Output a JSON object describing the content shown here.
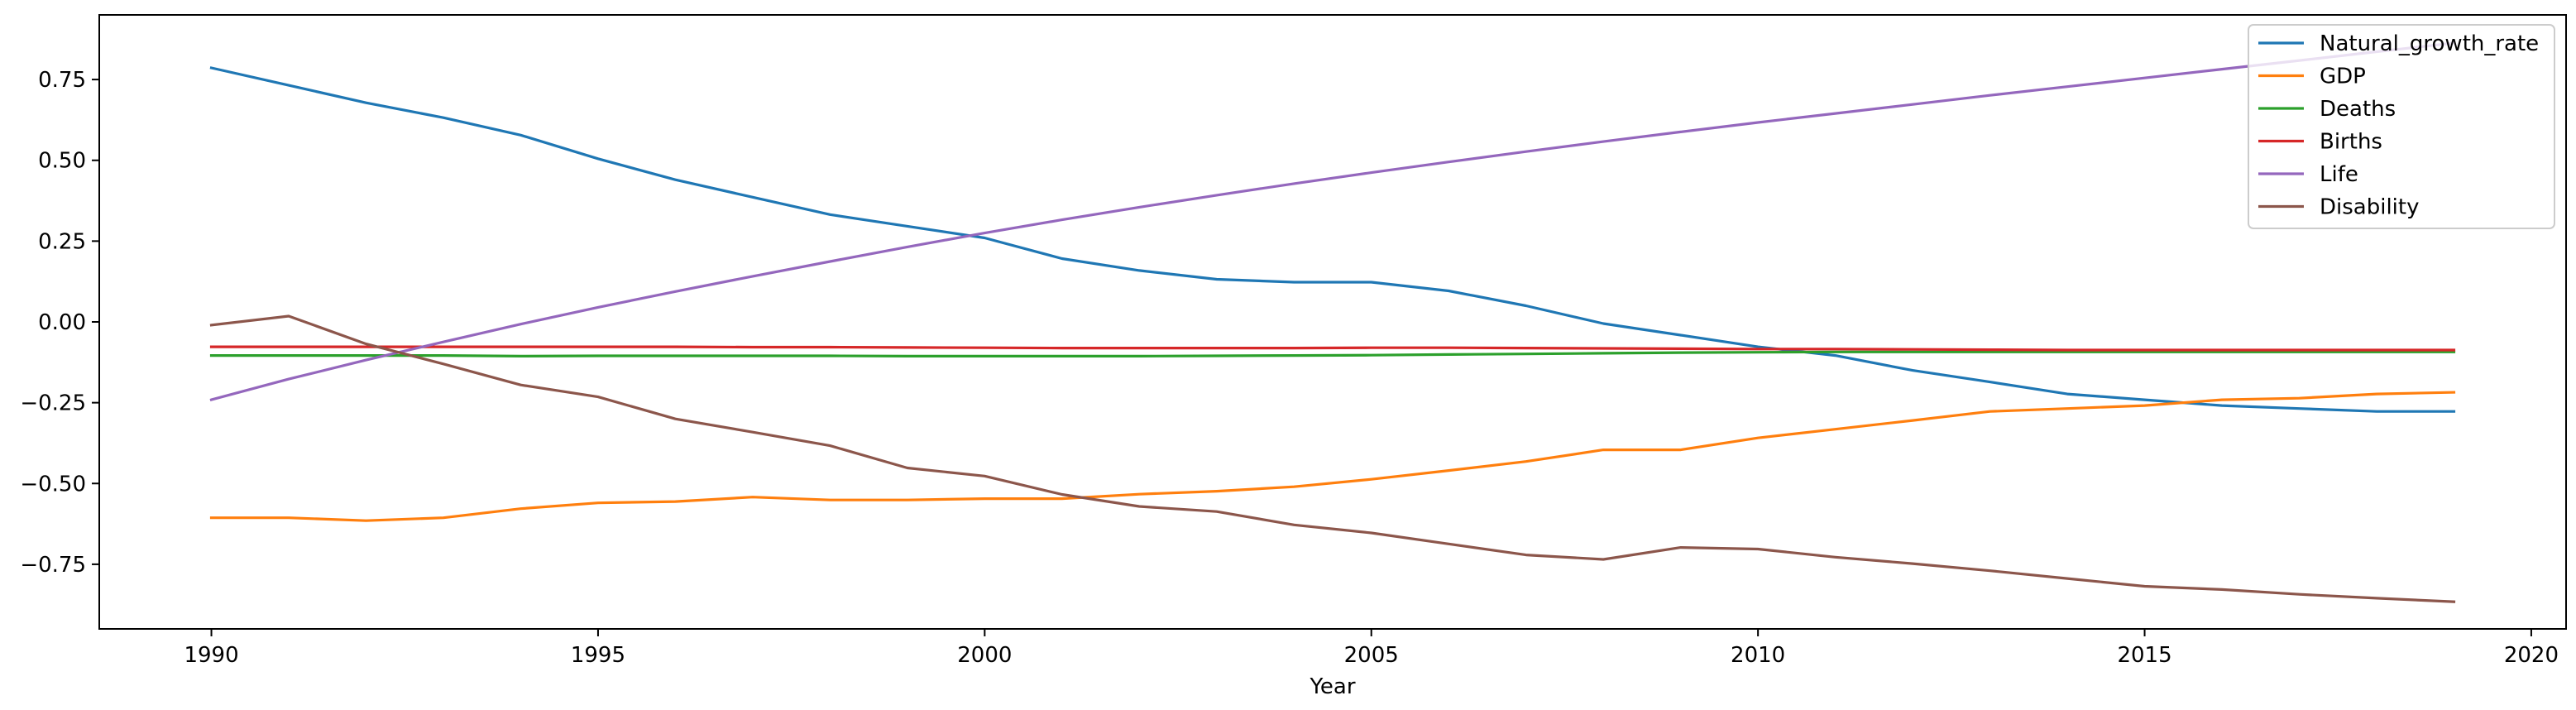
{
  "chart_data": {
    "type": "line",
    "title": "",
    "xlabel": "Year",
    "ylabel": "",
    "xlim": [
      1988.55,
      2020.45
    ],
    "ylim": [
      -0.95,
      0.95
    ],
    "xticks": [
      1990,
      1995,
      2000,
      2005,
      2010,
      2015,
      2020
    ],
    "xtick_labels": [
      "1990",
      "1995",
      "2000",
      "2005",
      "2010",
      "2015",
      "2020"
    ],
    "yticks": [
      -0.75,
      -0.5,
      -0.25,
      0.0,
      0.25,
      0.5,
      0.75
    ],
    "ytick_labels": [
      "−0.75",
      "−0.50",
      "−0.25",
      "0.00",
      "0.25",
      "0.50",
      "0.75"
    ],
    "grid": false,
    "legend_position": "top-right",
    "x": [
      1990,
      1991,
      1992,
      1993,
      1994,
      1995,
      1996,
      1997,
      1998,
      1999,
      2000,
      2001,
      2002,
      2003,
      2004,
      2005,
      2006,
      2007,
      2008,
      2009,
      2010,
      2011,
      2012,
      2013,
      2014,
      2015,
      2016,
      2017,
      2018,
      2019
    ],
    "series": [
      {
        "name": "Natural_growth_rate",
        "color": "#1f77b4",
        "values": [
          0.786,
          0.732,
          0.678,
          0.632,
          0.578,
          0.505,
          0.44,
          0.386,
          0.332,
          0.296,
          0.26,
          0.196,
          0.159,
          0.132,
          0.123,
          0.123,
          0.096,
          0.05,
          -0.005,
          -0.041,
          -0.077,
          -0.104,
          -0.15,
          -0.186,
          -0.223,
          -0.241,
          -0.259,
          -0.268,
          -0.277,
          -0.277
        ]
      },
      {
        "name": "GDP",
        "color": "#ff7f0e",
        "values": [
          -0.606,
          -0.606,
          -0.615,
          -0.606,
          -0.578,
          -0.56,
          -0.556,
          -0.542,
          -0.551,
          -0.551,
          -0.547,
          -0.547,
          -0.533,
          -0.524,
          -0.51,
          -0.487,
          -0.46,
          -0.432,
          -0.396,
          -0.396,
          -0.359,
          -0.332,
          -0.305,
          -0.277,
          -0.268,
          -0.259,
          -0.241,
          -0.236,
          -0.223,
          -0.218
        ]
      },
      {
        "name": "Deaths",
        "color": "#2ca02c",
        "values": [
          -0.104,
          -0.104,
          -0.104,
          -0.104,
          -0.106,
          -0.105,
          -0.105,
          -0.105,
          -0.105,
          -0.106,
          -0.106,
          -0.106,
          -0.106,
          -0.105,
          -0.104,
          -0.103,
          -0.101,
          -0.099,
          -0.097,
          -0.095,
          -0.094,
          -0.093,
          -0.093,
          -0.093,
          -0.093,
          -0.093,
          -0.093,
          -0.093,
          -0.093,
          -0.093
        ]
      },
      {
        "name": "Births",
        "color": "#d62728",
        "values": [
          -0.077,
          -0.077,
          -0.077,
          -0.077,
          -0.077,
          -0.077,
          -0.077,
          -0.078,
          -0.078,
          -0.079,
          -0.08,
          -0.081,
          -0.081,
          -0.081,
          -0.081,
          -0.08,
          -0.08,
          -0.081,
          -0.082,
          -0.083,
          -0.084,
          -0.084,
          -0.085,
          -0.086,
          -0.087,
          -0.087,
          -0.087,
          -0.087,
          -0.087,
          -0.087
        ]
      },
      {
        "name": "Life",
        "color": "#9467bd",
        "values": [
          -0.241,
          -0.177,
          -0.118,
          -0.062,
          -0.007,
          0.045,
          0.094,
          0.141,
          0.187,
          0.232,
          0.275,
          0.316,
          0.355,
          0.392,
          0.428,
          0.462,
          0.495,
          0.527,
          0.558,
          0.588,
          0.617,
          0.645,
          0.673,
          0.701,
          0.728,
          0.755,
          0.782,
          0.809,
          0.836,
          0.863
        ]
      },
      {
        "name": "Disability",
        "color": "#8c564b",
        "values": [
          -0.01,
          0.018,
          -0.068,
          -0.13,
          -0.195,
          -0.232,
          -0.3,
          -0.341,
          -0.383,
          -0.452,
          -0.477,
          -0.534,
          -0.571,
          -0.587,
          -0.628,
          -0.653,
          -0.687,
          -0.721,
          -0.735,
          -0.698,
          -0.703,
          -0.728,
          -0.748,
          -0.77,
          -0.794,
          -0.818,
          -0.828,
          -0.843,
          -0.855,
          -0.866
        ]
      }
    ]
  }
}
